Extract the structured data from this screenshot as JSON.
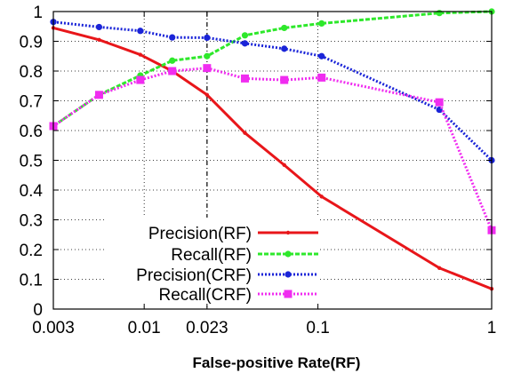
{
  "chart_data": {
    "type": "line",
    "title": "",
    "xlabel": "False-positive Rate(RF)",
    "ylabel": "",
    "x_scale": "log",
    "xlim": [
      0.003,
      1
    ],
    "ylim": [
      0,
      1
    ],
    "x_ticks": [
      {
        "value": 0.003,
        "label": "0.003"
      },
      {
        "value": 0.01,
        "label": "0.01"
      },
      {
        "value": 0.023,
        "label": "0.023"
      },
      {
        "value": 0.1,
        "label": "0.1"
      },
      {
        "value": 1,
        "label": "1"
      }
    ],
    "y_ticks": [
      {
        "value": 0,
        "label": "0"
      },
      {
        "value": 0.1,
        "label": "0.1"
      },
      {
        "value": 0.2,
        "label": "0.2"
      },
      {
        "value": 0.3,
        "label": "0.3"
      },
      {
        "value": 0.4,
        "label": "0.4"
      },
      {
        "value": 0.5,
        "label": "0.5"
      },
      {
        "value": 0.6,
        "label": "0.6"
      },
      {
        "value": 0.7,
        "label": "0.7"
      },
      {
        "value": 0.8,
        "label": "0.8"
      },
      {
        "value": 0.9,
        "label": "0.9"
      },
      {
        "value": 1,
        "label": "1"
      }
    ],
    "grid": true,
    "vertical_reference_line": 0.023,
    "legend_position": "bottom-center",
    "series": [
      {
        "name": "Precision(RF)",
        "color": "#e8161a",
        "style": "solid",
        "marker": "small-dot",
        "points": [
          [
            0.003,
            0.945
          ],
          [
            0.0055,
            0.905
          ],
          [
            0.0095,
            0.855
          ],
          [
            0.0145,
            0.8
          ],
          [
            0.023,
            0.72
          ],
          [
            0.038,
            0.592
          ],
          [
            0.064,
            0.484
          ],
          [
            0.105,
            0.378
          ],
          [
            0.5,
            0.138
          ],
          [
            1.0,
            0.068
          ]
        ]
      },
      {
        "name": "Recall(RF)",
        "color": "#2ee82b",
        "style": "dashed",
        "marker": "circle",
        "points": [
          [
            0.003,
            0.615
          ],
          [
            0.0055,
            0.72
          ],
          [
            0.0095,
            0.785
          ],
          [
            0.0145,
            0.835
          ],
          [
            0.023,
            0.85
          ],
          [
            0.038,
            0.92
          ],
          [
            0.064,
            0.945
          ],
          [
            0.105,
            0.96
          ],
          [
            0.5,
            0.995
          ],
          [
            1.0,
            1.0
          ]
        ]
      },
      {
        "name": "Precision(CRF)",
        "color": "#1a24d8",
        "style": "dotted",
        "marker": "circle",
        "points": [
          [
            0.003,
            0.965
          ],
          [
            0.0055,
            0.948
          ],
          [
            0.0095,
            0.935
          ],
          [
            0.0145,
            0.913
          ],
          [
            0.023,
            0.912
          ],
          [
            0.038,
            0.893
          ],
          [
            0.064,
            0.875
          ],
          [
            0.105,
            0.85
          ],
          [
            0.5,
            0.67
          ],
          [
            1.0,
            0.5
          ]
        ]
      },
      {
        "name": "Recall(CRF)",
        "color": "#f02cf0",
        "style": "dotted",
        "marker": "square",
        "points": [
          [
            0.003,
            0.615
          ],
          [
            0.0055,
            0.72
          ],
          [
            0.0095,
            0.77
          ],
          [
            0.0145,
            0.8
          ],
          [
            0.023,
            0.81
          ],
          [
            0.038,
            0.775
          ],
          [
            0.064,
            0.77
          ],
          [
            0.105,
            0.778
          ],
          [
            0.5,
            0.695
          ],
          [
            1.0,
            0.265
          ]
        ]
      }
    ]
  }
}
